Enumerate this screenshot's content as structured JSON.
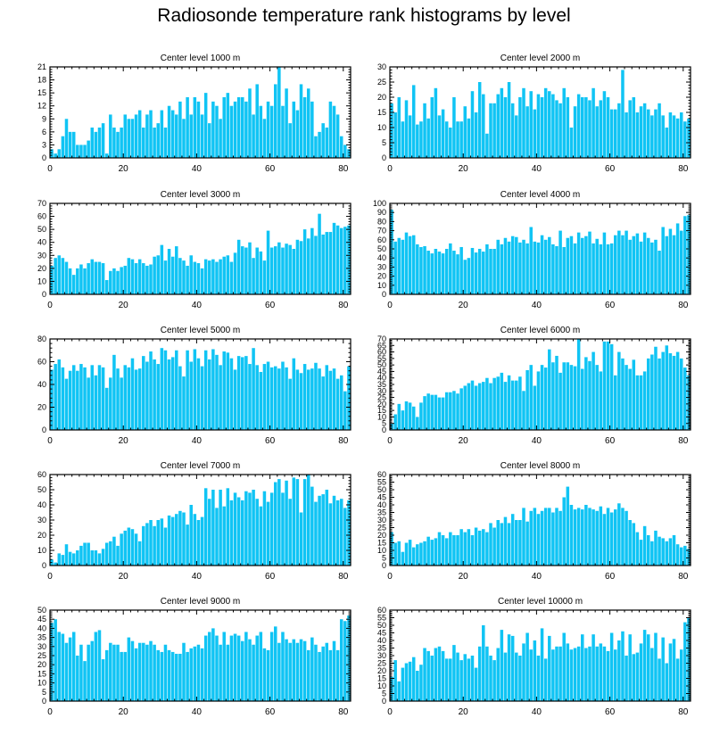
{
  "title": "Radiosonde temperature rank histograms by level",
  "colors": {
    "bar": "#10c4f4",
    "bar_edge": "#ffffff",
    "axis": "#000000"
  },
  "chart_data": [
    {
      "type": "bar",
      "title": "Center level 1000 m",
      "xlabel": "",
      "ylabel": "",
      "xlim": [
        0,
        82
      ],
      "xticks": [
        0,
        20,
        40,
        60,
        80
      ],
      "ylim": [
        0,
        21
      ],
      "yticks": [
        0,
        3,
        6,
        9,
        12,
        15,
        18,
        21
      ],
      "values": [
        2,
        1,
        2,
        5,
        9,
        6,
        6,
        3,
        3,
        3,
        4,
        7,
        6,
        7,
        8,
        1,
        10,
        7,
        6,
        7,
        10,
        9,
        9,
        10,
        11,
        7,
        10,
        11,
        7,
        8,
        11,
        7,
        12,
        11,
        10,
        13,
        9,
        14,
        10,
        14,
        13,
        10,
        15,
        8,
        13,
        12,
        9,
        14,
        15,
        12,
        13,
        14,
        14,
        13,
        16,
        10,
        17,
        12,
        9,
        13,
        12,
        17,
        21,
        12,
        16,
        8,
        13,
        11,
        17,
        14,
        16,
        13,
        5,
        6,
        8,
        7,
        13,
        12,
        10,
        5,
        3,
        2
      ]
    },
    {
      "type": "bar",
      "title": "Center level 2000 m",
      "xlabel": "",
      "ylabel": "",
      "xlim": [
        0,
        82
      ],
      "xticks": [
        0,
        20,
        40,
        60,
        80
      ],
      "ylim": [
        0,
        30
      ],
      "yticks": [
        0,
        5,
        10,
        15,
        20,
        25,
        30
      ],
      "values": [
        18,
        15,
        20,
        12,
        19,
        14,
        24,
        11,
        12,
        18,
        13,
        20,
        23,
        14,
        16,
        12,
        10,
        20,
        12,
        12,
        17,
        13,
        22,
        15,
        25,
        21,
        8,
        18,
        18,
        21,
        23,
        20,
        25,
        18,
        14,
        20,
        23,
        17,
        22,
        16,
        21,
        20,
        23,
        22,
        21,
        19,
        18,
        23,
        20,
        10,
        17,
        21,
        20,
        20,
        19,
        23,
        17,
        19,
        22,
        20,
        16,
        16,
        18,
        29,
        15,
        19,
        20,
        15,
        17,
        18,
        16,
        14,
        16,
        18,
        14,
        10,
        15,
        14,
        13,
        15,
        12,
        13
      ]
    },
    {
      "type": "bar",
      "title": "Center level 3000 m",
      "xlabel": "",
      "ylabel": "",
      "xlim": [
        0,
        82
      ],
      "xticks": [
        0,
        20,
        40,
        60,
        80
      ],
      "ylim": [
        0,
        70
      ],
      "yticks": [
        0,
        10,
        20,
        30,
        40,
        50,
        60,
        70
      ],
      "values": [
        22,
        28,
        30,
        28,
        25,
        20,
        15,
        20,
        23,
        20,
        24,
        27,
        25,
        25,
        24,
        11,
        18,
        20,
        18,
        21,
        22,
        28,
        27,
        24,
        27,
        24,
        22,
        23,
        29,
        30,
        38,
        26,
        35,
        29,
        37,
        28,
        26,
        22,
        30,
        25,
        24,
        20,
        27,
        26,
        27,
        25,
        27,
        29,
        30,
        25,
        32,
        42,
        37,
        36,
        40,
        28,
        36,
        33,
        26,
        49,
        36,
        37,
        40,
        36,
        39,
        38,
        35,
        42,
        41,
        50,
        43,
        51,
        45,
        62,
        46,
        48,
        48,
        55,
        53,
        51,
        52,
        53
      ]
    },
    {
      "type": "bar",
      "title": "Center level 4000 m",
      "xlabel": "",
      "ylabel": "",
      "xlim": [
        0,
        82
      ],
      "xticks": [
        0,
        20,
        40,
        60,
        80
      ],
      "ylim": [
        0,
        100
      ],
      "yticks": [
        0,
        10,
        20,
        30,
        40,
        50,
        60,
        70,
        80,
        90,
        100
      ],
      "values": [
        93,
        58,
        62,
        60,
        68,
        64,
        65,
        55,
        52,
        53,
        48,
        45,
        50,
        47,
        45,
        50,
        56,
        48,
        44,
        52,
        38,
        40,
        51,
        46,
        50,
        47,
        55,
        50,
        50,
        60,
        55,
        62,
        58,
        64,
        63,
        57,
        60,
        56,
        74,
        58,
        57,
        65,
        60,
        63,
        55,
        53,
        70,
        52,
        62,
        64,
        56,
        68,
        62,
        64,
        69,
        56,
        61,
        55,
        68,
        55,
        56,
        65,
        70,
        65,
        70,
        60,
        64,
        67,
        58,
        68,
        62,
        57,
        60,
        48,
        74,
        64,
        72,
        65,
        78,
        70,
        86,
        87
      ]
    },
    {
      "type": "bar",
      "title": "Center level 5000 m",
      "xlabel": "",
      "ylabel": "",
      "xlim": [
        0,
        82
      ],
      "xticks": [
        0,
        20,
        40,
        60,
        80
      ],
      "ylim": [
        0,
        80
      ],
      "yticks": [
        0,
        20,
        40,
        60,
        80
      ],
      "values": [
        53,
        58,
        62,
        55,
        45,
        52,
        57,
        52,
        58,
        55,
        46,
        57,
        48,
        57,
        55,
        37,
        46,
        66,
        54,
        46,
        57,
        55,
        63,
        53,
        54,
        65,
        60,
        69,
        62,
        58,
        72,
        70,
        62,
        64,
        70,
        56,
        47,
        70,
        60,
        71,
        63,
        56,
        70,
        62,
        71,
        66,
        57,
        69,
        68,
        63,
        53,
        65,
        64,
        65,
        58,
        72,
        57,
        51,
        58,
        60,
        55,
        56,
        54,
        60,
        55,
        45,
        63,
        53,
        50,
        58,
        53,
        54,
        59,
        54,
        47,
        57,
        52,
        54,
        45,
        48,
        34,
        56
      ]
    },
    {
      "type": "bar",
      "title": "Center level 6000 m",
      "xlabel": "",
      "ylabel": "",
      "xlim": [
        0,
        82
      ],
      "xticks": [
        0,
        20,
        40,
        60,
        80
      ],
      "ylim": [
        0,
        70
      ],
      "yticks": [
        0,
        5,
        10,
        15,
        20,
        25,
        30,
        35,
        40,
        45,
        50,
        55,
        60,
        65,
        70
      ],
      "values": [
        5,
        12,
        20,
        15,
        22,
        21,
        18,
        10,
        21,
        26,
        28,
        27,
        27,
        25,
        25,
        29,
        29,
        30,
        28,
        32,
        34,
        36,
        38,
        34,
        36,
        37,
        40,
        36,
        40,
        41,
        44,
        37,
        42,
        38,
        38,
        41,
        30,
        46,
        50,
        34,
        45,
        50,
        48,
        62,
        52,
        57,
        44,
        52,
        52,
        50,
        49,
        70,
        47,
        56,
        53,
        60,
        50,
        45,
        68,
        68,
        66,
        42,
        60,
        55,
        50,
        47,
        54,
        42,
        42,
        45,
        55,
        58,
        64,
        55,
        60,
        65,
        59,
        57,
        60,
        55,
        48,
        42
      ]
    },
    {
      "type": "bar",
      "title": "Center level 7000 m",
      "xlabel": "",
      "ylabel": "",
      "xlim": [
        0,
        82
      ],
      "xticks": [
        0,
        20,
        40,
        60,
        80
      ],
      "ylim": [
        0,
        60
      ],
      "yticks": [
        0,
        10,
        20,
        30,
        40,
        50,
        60
      ],
      "values": [
        4,
        2,
        8,
        7,
        14,
        9,
        8,
        10,
        13,
        15,
        15,
        10,
        10,
        8,
        11,
        15,
        16,
        19,
        13,
        21,
        23,
        25,
        24,
        21,
        16,
        26,
        28,
        30,
        26,
        30,
        31,
        25,
        33,
        32,
        34,
        36,
        35,
        27,
        40,
        34,
        30,
        32,
        51,
        44,
        50,
        38,
        50,
        39,
        51,
        43,
        48,
        45,
        43,
        49,
        48,
        50,
        44,
        39,
        49,
        42,
        48,
        55,
        57,
        48,
        56,
        44,
        58,
        57,
        35,
        57,
        60,
        52,
        42,
        46,
        47,
        50,
        41,
        46,
        43,
        44,
        38,
        43
      ]
    },
    {
      "type": "bar",
      "title": "Center level 8000 m",
      "xlabel": "",
      "ylabel": "",
      "xlim": [
        0,
        82
      ],
      "xticks": [
        0,
        20,
        40,
        60,
        80
      ],
      "ylim": [
        0,
        60
      ],
      "yticks": [
        0,
        5,
        10,
        15,
        20,
        25,
        30,
        35,
        40,
        45,
        50,
        55,
        60
      ],
      "values": [
        22,
        15,
        16,
        9,
        15,
        17,
        12,
        14,
        15,
        16,
        19,
        17,
        18,
        22,
        20,
        18,
        22,
        20,
        20,
        24,
        22,
        24,
        20,
        25,
        23,
        24,
        22,
        28,
        25,
        30,
        28,
        32,
        28,
        34,
        30,
        30,
        38,
        29,
        36,
        38,
        34,
        36,
        38,
        38,
        35,
        38,
        36,
        45,
        52,
        40,
        37,
        38,
        37,
        40,
        38,
        37,
        36,
        39,
        34,
        38,
        35,
        37,
        41,
        38,
        36,
        30,
        28,
        22,
        17,
        26,
        20,
        16,
        23,
        19,
        18,
        16,
        18,
        20,
        14,
        12,
        13,
        11
      ]
    },
    {
      "type": "bar",
      "title": "Center level 9000 m",
      "xlabel": "",
      "ylabel": "",
      "xlim": [
        0,
        82
      ],
      "xticks": [
        0,
        20,
        40,
        60,
        80
      ],
      "ylim": [
        0,
        50
      ],
      "yticks": [
        0,
        5,
        10,
        15,
        20,
        25,
        30,
        35,
        40,
        45,
        50
      ],
      "values": [
        43,
        45,
        38,
        37,
        32,
        35,
        38,
        25,
        31,
        22,
        31,
        33,
        38,
        39,
        23,
        28,
        32,
        31,
        31,
        27,
        27,
        35,
        33,
        29,
        32,
        32,
        31,
        33,
        31,
        28,
        27,
        31,
        28,
        27,
        26,
        26,
        32,
        27,
        29,
        30,
        31,
        29,
        36,
        38,
        40,
        36,
        31,
        38,
        31,
        36,
        37,
        36,
        33,
        38,
        34,
        31,
        36,
        38,
        29,
        28,
        38,
        41,
        32,
        38,
        34,
        32,
        34,
        32,
        34,
        33,
        28,
        35,
        31,
        27,
        30,
        32,
        28,
        33,
        28,
        45,
        44,
        47
      ]
    },
    {
      "type": "bar",
      "title": "Center level 10000 m",
      "xlabel": "",
      "ylabel": "",
      "xlim": [
        0,
        82
      ],
      "xticks": [
        0,
        20,
        40,
        60,
        80
      ],
      "ylim": [
        0,
        60
      ],
      "yticks": [
        0,
        5,
        10,
        15,
        20,
        25,
        30,
        35,
        40,
        45,
        50,
        55,
        60
      ],
      "values": [
        16,
        27,
        13,
        22,
        25,
        26,
        29,
        20,
        24,
        35,
        33,
        30,
        35,
        36,
        33,
        28,
        28,
        37,
        32,
        27,
        31,
        28,
        30,
        22,
        36,
        50,
        36,
        30,
        27,
        35,
        47,
        32,
        44,
        43,
        32,
        30,
        38,
        45,
        34,
        40,
        30,
        48,
        28,
        43,
        34,
        36,
        36,
        45,
        38,
        34,
        35,
        36,
        44,
        35,
        36,
        44,
        36,
        38,
        36,
        33,
        45,
        34,
        40,
        46,
        30,
        44,
        31,
        32,
        38,
        47,
        44,
        35,
        45,
        28,
        42,
        25,
        38,
        41,
        28,
        34,
        52,
        55
      ]
    }
  ]
}
